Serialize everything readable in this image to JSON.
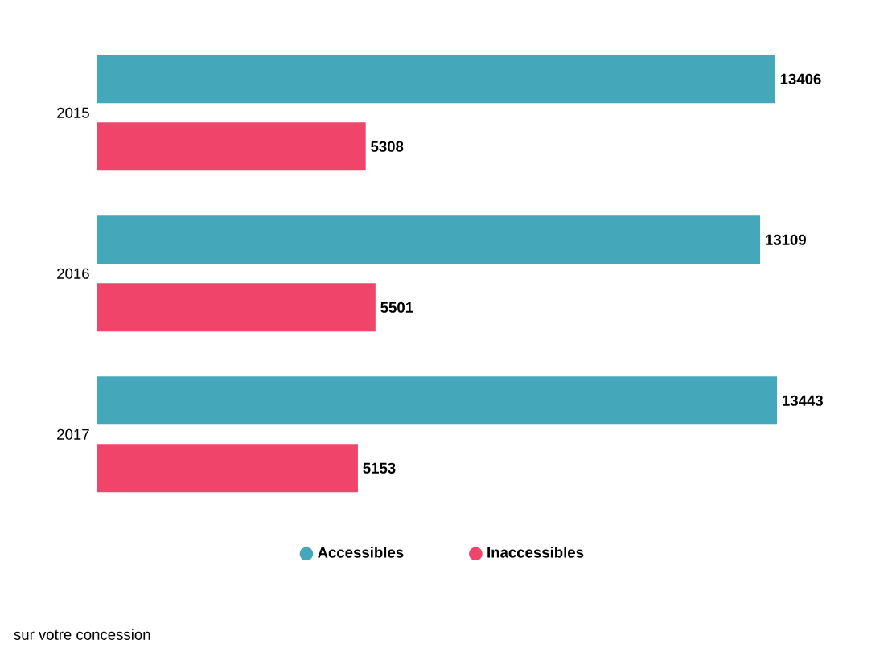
{
  "chart_data": {
    "type": "bar",
    "orientation": "horizontal",
    "categories": [
      "2015",
      "2016",
      "2017"
    ],
    "series": [
      {
        "name": "Accessibles",
        "color": "#45a8ba",
        "values": [
          13406,
          13109,
          13443
        ]
      },
      {
        "name": "Inaccessibles",
        "color": "#f0446a",
        "values": [
          5308,
          5501,
          5153
        ]
      }
    ],
    "data_labels": true,
    "legend": "bottom",
    "tick_labels": "y",
    "annotations": [
      "sur votre concession"
    ]
  }
}
